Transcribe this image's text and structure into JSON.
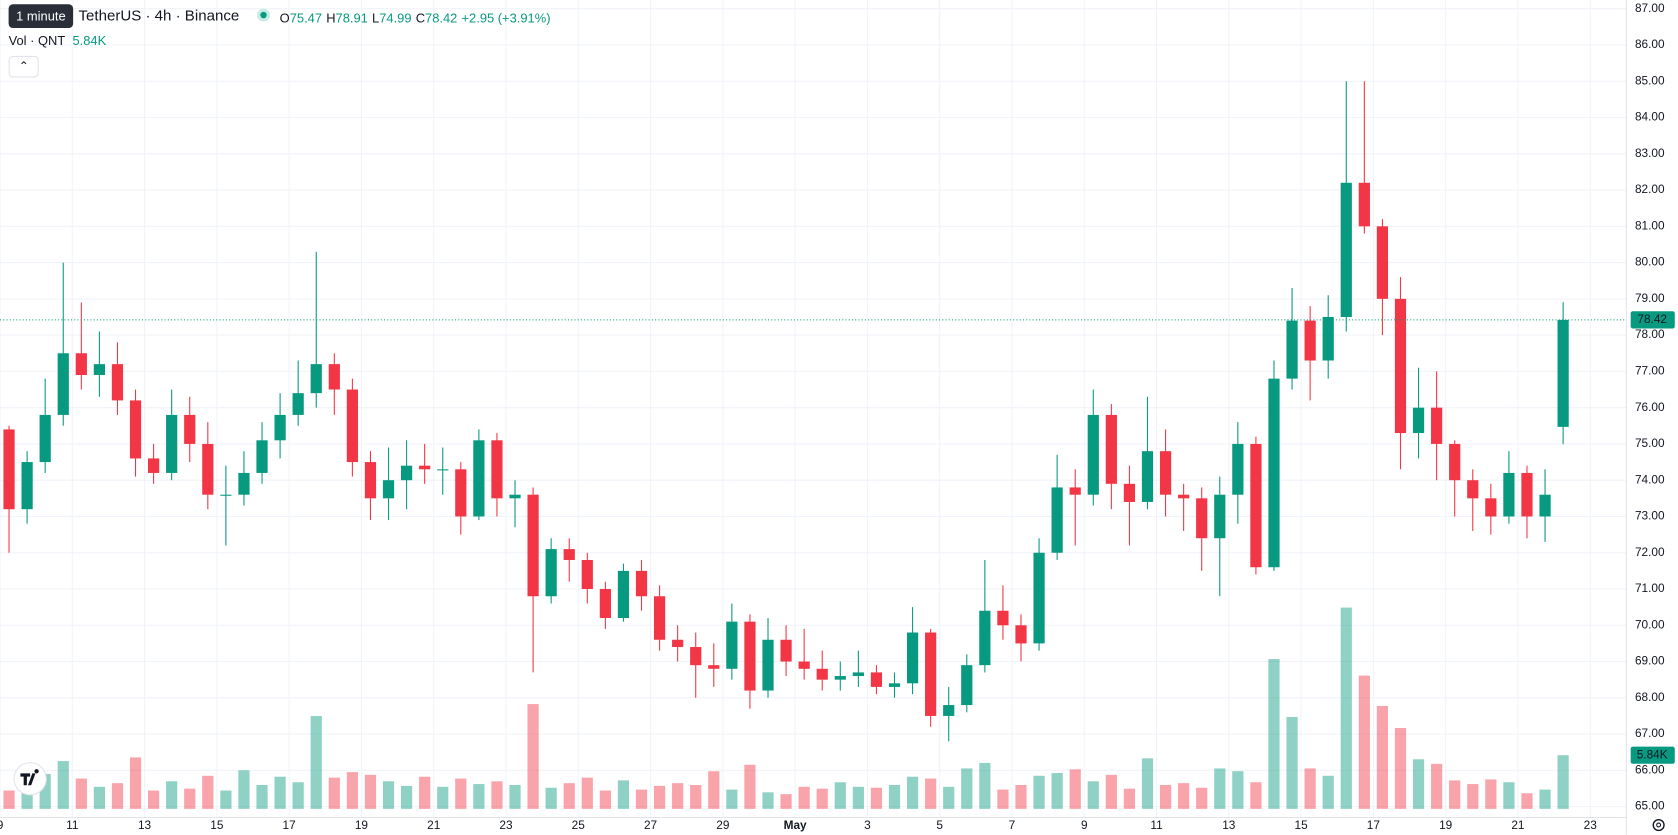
{
  "header": {
    "tooltip": "1 minute",
    "symbol": "TetherUS · 4h · Binance",
    "ohlc": [
      [
        "O",
        "75.47"
      ],
      [
        "H",
        "78.91"
      ],
      [
        "L",
        "74.99"
      ],
      [
        "C",
        "78.42"
      ]
    ],
    "change": "+2.95 (+3.91%)",
    "volume_label": "Vol · QNT",
    "volume_value": "5.84K"
  },
  "chart_data": {
    "type": "candlestick",
    "open": [
      75.4,
      73.2,
      74.5,
      75.8,
      77.5,
      76.9,
      77.2,
      76.2,
      74.6,
      74.2,
      75.8,
      75.0,
      73.6,
      73.6,
      74.2,
      75.1,
      75.8,
      76.4,
      77.2,
      76.5,
      74.5,
      73.5,
      74.0,
      74.4,
      74.3,
      74.3,
      73.0,
      75.1,
      73.5,
      73.6,
      70.8,
      72.1,
      71.8,
      71.0,
      70.2,
      71.5,
      70.8,
      69.6,
      69.4,
      68.9,
      68.8,
      70.1,
      68.2,
      69.6,
      69.0,
      68.8,
      68.5,
      68.6,
      68.7,
      68.3,
      68.4,
      69.8,
      67.5,
      67.8,
      68.9,
      70.4,
      70.0,
      69.5,
      72.0,
      73.8,
      73.6,
      75.8,
      73.9,
      73.4,
      74.8,
      73.6,
      73.5,
      72.4,
      73.6,
      75.0,
      71.6,
      76.8,
      78.4,
      77.3,
      78.5,
      82.2,
      81.0,
      79.0,
      75.3,
      76.0,
      75.0,
      74.0,
      73.5,
      73.0,
      74.2,
      73.0,
      75.47
    ],
    "high": [
      75.5,
      74.8,
      76.8,
      80.0,
      78.9,
      78.1,
      77.8,
      76.5,
      75.0,
      76.5,
      76.3,
      75.6,
      74.4,
      74.8,
      75.6,
      76.4,
      77.3,
      80.3,
      77.5,
      76.8,
      74.8,
      74.9,
      75.1,
      75.0,
      74.9,
      74.5,
      75.4,
      75.3,
      74.0,
      73.8,
      72.4,
      72.4,
      72.0,
      71.2,
      71.7,
      71.8,
      71.1,
      70.0,
      69.8,
      69.5,
      70.6,
      70.3,
      70.2,
      70.0,
      69.9,
      69.3,
      69.0,
      69.3,
      68.9,
      68.7,
      70.5,
      69.9,
      68.3,
      69.2,
      71.8,
      71.1,
      70.3,
      72.4,
      74.7,
      74.3,
      76.5,
      76.1,
      74.4,
      76.3,
      75.4,
      73.9,
      73.8,
      74.1,
      75.6,
      75.2,
      77.3,
      79.3,
      78.8,
      79.1,
      85.0,
      85.0,
      81.2,
      79.6,
      77.1,
      77.0,
      75.1,
      74.3,
      73.9,
      74.8,
      74.4,
      74.3,
      78.91
    ],
    "low": [
      72.0,
      72.8,
      74.2,
      75.5,
      76.5,
      76.3,
      75.8,
      74.1,
      73.9,
      74.0,
      74.5,
      73.2,
      72.2,
      73.3,
      73.9,
      74.6,
      75.5,
      76.0,
      75.8,
      74.1,
      72.9,
      72.9,
      73.2,
      73.9,
      73.6,
      72.5,
      72.9,
      73.0,
      72.7,
      68.7,
      70.6,
      71.2,
      70.6,
      69.9,
      70.1,
      70.4,
      69.3,
      69.0,
      68.0,
      68.3,
      68.5,
      67.7,
      68.0,
      68.6,
      68.5,
      68.2,
      68.2,
      68.3,
      68.1,
      68.0,
      68.1,
      67.2,
      66.8,
      67.6,
      68.7,
      69.6,
      69.0,
      69.3,
      71.8,
      72.2,
      73.3,
      73.2,
      72.2,
      73.2,
      73.0,
      72.6,
      71.5,
      70.8,
      72.8,
      71.4,
      71.5,
      76.5,
      76.2,
      76.8,
      78.1,
      80.8,
      78.0,
      74.3,
      74.6,
      74.0,
      73.0,
      72.6,
      72.5,
      72.8,
      72.4,
      72.3,
      74.99
    ],
    "close": [
      73.2,
      74.5,
      75.8,
      77.5,
      76.9,
      77.2,
      76.2,
      74.6,
      74.2,
      75.8,
      75.0,
      73.6,
      73.6,
      74.2,
      75.1,
      75.8,
      76.4,
      77.2,
      76.5,
      74.5,
      73.5,
      74.0,
      74.4,
      74.3,
      74.3,
      73.0,
      75.1,
      73.5,
      73.6,
      70.8,
      72.1,
      71.8,
      71.0,
      70.2,
      71.5,
      70.8,
      69.6,
      69.4,
      68.9,
      68.8,
      70.1,
      68.2,
      69.6,
      69.0,
      68.8,
      68.5,
      68.6,
      68.7,
      68.3,
      68.4,
      69.8,
      67.5,
      67.8,
      68.9,
      70.4,
      70.0,
      69.5,
      72.0,
      73.8,
      73.6,
      75.8,
      73.9,
      73.4,
      74.8,
      73.6,
      73.5,
      72.4,
      73.6,
      75.0,
      71.6,
      76.8,
      78.4,
      77.3,
      78.5,
      82.2,
      81.0,
      79.0,
      75.3,
      76.0,
      75.0,
      74.0,
      73.5,
      73.0,
      74.2,
      73.0,
      73.6,
      78.42
    ],
    "volume": [
      2000,
      4500,
      3800,
      5200,
      3300,
      2400,
      2800,
      5600,
      2000,
      3000,
      2200,
      3600,
      2000,
      4200,
      2600,
      3500,
      2900,
      10100,
      3400,
      4000,
      3700,
      3000,
      2500,
      3500,
      2400,
      3300,
      2700,
      3000,
      2600,
      11400,
      2300,
      2800,
      3400,
      2000,
      3100,
      2100,
      2500,
      2800,
      2600,
      4100,
      2100,
      4800,
      1800,
      1600,
      2400,
      2200,
      2900,
      2400,
      2300,
      2600,
      3500,
      3300,
      2400,
      4400,
      5000,
      2100,
      2600,
      3600,
      3900,
      4300,
      3000,
      3700,
      2200,
      5500,
      2600,
      2800,
      2300,
      4400,
      4100,
      2900,
      16300,
      10000,
      4400,
      3600,
      21900,
      14500,
      11200,
      8800,
      5400,
      4900,
      3100,
      2700,
      3200,
      2900,
      1700,
      2100,
      5840
    ],
    "volume_ylim": [
      0,
      44000
    ],
    "up_color": "#089981",
    "down_color": "#f23645",
    "ylim": [
      64.7,
      87.24
    ],
    "yticks": [
      {
        "value": 65,
        "label": "65.00"
      },
      {
        "value": 66,
        "label": "66.00"
      },
      {
        "value": 67,
        "label": "67.00"
      },
      {
        "value": 68,
        "label": "68.00"
      },
      {
        "value": 69,
        "label": "69.00"
      },
      {
        "value": 70,
        "label": "70.00"
      },
      {
        "value": 71,
        "label": "71.00"
      },
      {
        "value": 72,
        "label": "72.00"
      },
      {
        "value": 73,
        "label": "73.00"
      },
      {
        "value": 74,
        "label": "74.00"
      },
      {
        "value": 75,
        "label": "75.00"
      },
      {
        "value": 76,
        "label": "76.00"
      },
      {
        "value": 77,
        "label": "77.00"
      },
      {
        "value": 78,
        "label": "78.00"
      },
      {
        "value": 79,
        "label": "79.00"
      },
      {
        "value": 80,
        "label": "80.00"
      },
      {
        "value": 81,
        "label": "81.00"
      },
      {
        "value": 82,
        "label": "82.00"
      },
      {
        "value": 83,
        "label": "83.00"
      },
      {
        "value": 84,
        "label": "84.00"
      },
      {
        "value": 85,
        "label": "85.00"
      },
      {
        "value": 86,
        "label": "86.00"
      },
      {
        "value": 87,
        "label": "87.00"
      }
    ],
    "xlim": [
      0,
      90
    ],
    "xticks": [
      {
        "value": 0,
        "label": "9"
      },
      {
        "value": 4,
        "label": "11"
      },
      {
        "value": 8,
        "label": "13"
      },
      {
        "value": 12,
        "label": "15"
      },
      {
        "value": 16,
        "label": "17"
      },
      {
        "value": 20,
        "label": "19"
      },
      {
        "value": 24,
        "label": "21"
      },
      {
        "value": 28,
        "label": "23"
      },
      {
        "value": 32,
        "label": "25"
      },
      {
        "value": 36,
        "label": "27"
      },
      {
        "value": 40,
        "label": "29"
      },
      {
        "value": 44,
        "label": "May"
      },
      {
        "value": 48,
        "label": "3"
      },
      {
        "value": 52,
        "label": "5"
      },
      {
        "value": 56,
        "label": "7"
      },
      {
        "value": 60,
        "label": "9"
      },
      {
        "value": 64,
        "label": "11"
      },
      {
        "value": 68,
        "label": "13"
      },
      {
        "value": 72,
        "label": "15"
      },
      {
        "value": 76,
        "label": "17"
      },
      {
        "value": 80,
        "label": "19"
      },
      {
        "value": 84,
        "label": "21"
      },
      {
        "value": 88,
        "label": "23"
      }
    ],
    "grid": true
  }
}
